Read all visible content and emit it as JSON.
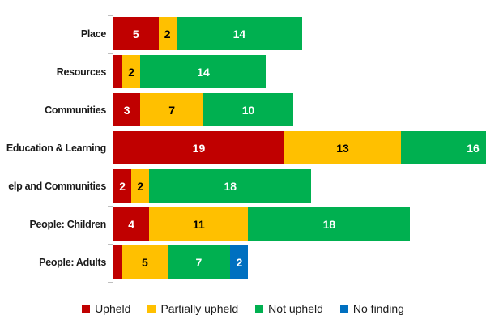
{
  "chart_data": {
    "type": "bar",
    "orientation": "horizontal",
    "stacked": true,
    "title": "",
    "xlabel": "",
    "ylabel": "",
    "grid": false,
    "x_axis_visible": false,
    "legend_position": "bottom",
    "categories": [
      "Place",
      "Resources",
      "Communities",
      "Education & Learning",
      "elp and Communities",
      "People: Children",
      "People: Adults"
    ],
    "series": [
      {
        "name": "Upheld",
        "color": "#C00000",
        "label_color": "#FFFFFF",
        "values": [
          5,
          1,
          3,
          19,
          2,
          4,
          1
        ]
      },
      {
        "name": "Partially upheld",
        "color": "#FFC000",
        "label_color": "#000000",
        "values": [
          2,
          2,
          7,
          13,
          2,
          11,
          5
        ]
      },
      {
        "name": "Not upheld",
        "color": "#00B050",
        "label_color": "#FFFFFF",
        "values": [
          14,
          14,
          10,
          16,
          18,
          18,
          7
        ]
      },
      {
        "name": "No finding",
        "color": "#0070C0",
        "label_color": "#FFFFFF",
        "values": [
          0,
          0,
          0,
          0,
          0,
          0,
          2
        ]
      }
    ],
    "row_totals": [
      21,
      17,
      20,
      48,
      22,
      33,
      15
    ],
    "data_label_min_value_to_show": 2,
    "axis_line_color": "#BFBFBF",
    "clipping_note": "Education & Learning 'Not upheld' segment (16) extends past the right edge of the image"
  }
}
